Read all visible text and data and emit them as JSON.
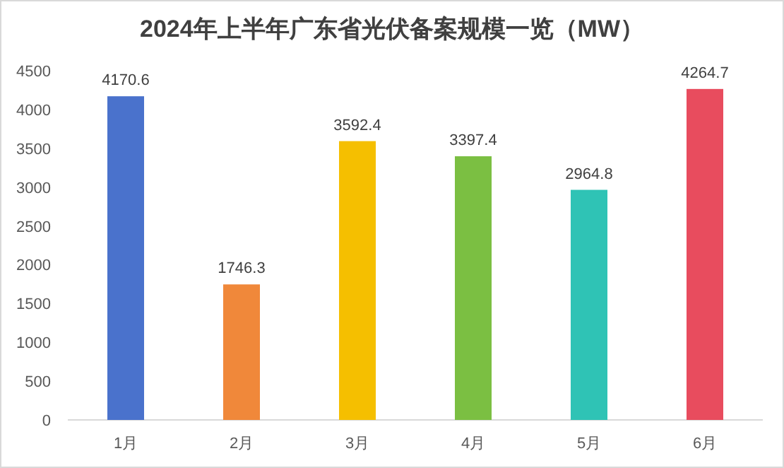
{
  "chart_data": {
    "type": "bar",
    "title": "2024年上半年广东省光伏备案规模一览（MW）",
    "categories": [
      "1月",
      "2月",
      "3月",
      "4月",
      "5月",
      "6月"
    ],
    "values": [
      4170.6,
      1746.3,
      3592.4,
      3397.4,
      2964.8,
      4264.7
    ],
    "colors": [
      "#4a72cc",
      "#f0883a",
      "#f5bf00",
      "#7bbf42",
      "#2fc3b5",
      "#e84c5e"
    ],
    "ylim": [
      0,
      4500
    ],
    "yticks": [
      0,
      500,
      1000,
      1500,
      2000,
      2500,
      3000,
      3500,
      4000,
      4500
    ],
    "data_labels": true
  }
}
